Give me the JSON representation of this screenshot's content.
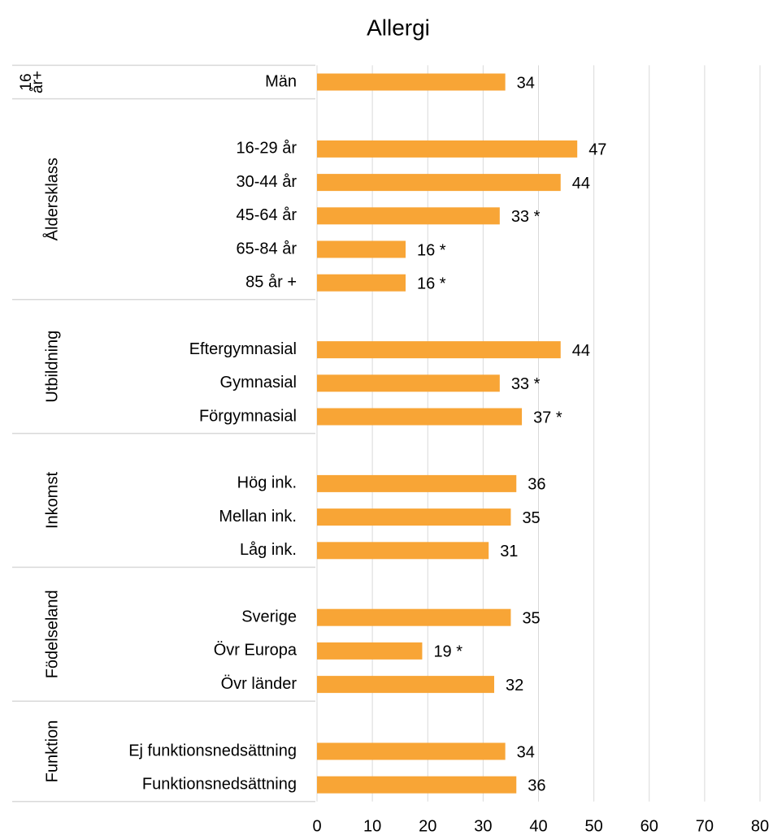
{
  "chart_data": {
    "type": "bar",
    "title": "Allergi",
    "color": "#f8a536",
    "xlim": [
      0,
      80
    ],
    "xticks": [
      0,
      10,
      20,
      30,
      40,
      50,
      60,
      70,
      80
    ],
    "grid": true,
    "groups": [
      {
        "name": [
          "16",
          "år+"
        ],
        "categories": [
          "Män"
        ],
        "values": [
          34
        ],
        "value_labels": [
          "34"
        ]
      },
      {
        "name": [
          "Åldersklass"
        ],
        "categories": [
          null,
          "16-29 år",
          "30-44 år",
          "45-64 år",
          "65-84 år",
          "85 år +"
        ],
        "values": [
          null,
          47,
          44,
          33,
          16,
          16
        ],
        "value_labels": [
          null,
          "47",
          "44",
          "33 *",
          "16 *",
          "16 *"
        ]
      },
      {
        "name": [
          "Utbildning"
        ],
        "categories": [
          null,
          "Eftergymnasial",
          "Gymnasial",
          "Förgymnasial"
        ],
        "values": [
          null,
          44,
          33,
          37
        ],
        "value_labels": [
          null,
          "44",
          "33 *",
          "37 *"
        ]
      },
      {
        "name": [
          "Inkomst"
        ],
        "categories": [
          null,
          "Hög ink.",
          "Mellan ink.",
          "Låg ink."
        ],
        "values": [
          null,
          36,
          35,
          31
        ],
        "value_labels": [
          null,
          "36",
          "35",
          "31"
        ]
      },
      {
        "name": [
          "Födelseland"
        ],
        "categories": [
          null,
          "Sverige",
          "Övr Europa",
          "Övr länder"
        ],
        "values": [
          null,
          35,
          19,
          32
        ],
        "value_labels": [
          null,
          "35",
          "19 *",
          "32"
        ]
      },
      {
        "name": [
          "Funktion"
        ],
        "categories": [
          null,
          "Ej funktionsnedsättning",
          "Funktionsnedsättning"
        ],
        "values": [
          null,
          34,
          36
        ],
        "value_labels": [
          null,
          "34",
          "36"
        ]
      }
    ]
  }
}
